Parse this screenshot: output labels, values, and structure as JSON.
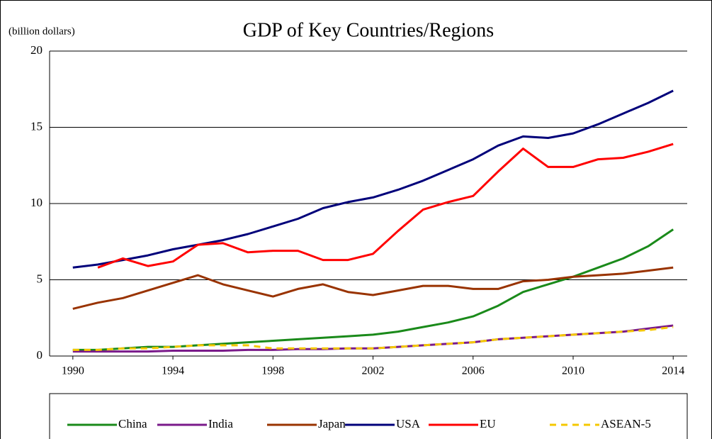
{
  "chart_data": {
    "type": "line",
    "title": "GDP of Key Countries/Regions",
    "ylabel": "(billion dollars)",
    "x": [
      1990,
      1991,
      1992,
      1993,
      1994,
      1995,
      1996,
      1997,
      1998,
      1999,
      2000,
      2001,
      2002,
      2003,
      2004,
      2005,
      2006,
      2007,
      2008,
      2009,
      2010,
      2011,
      2012,
      2013,
      2014
    ],
    "xlim": [
      1989.07,
      2014.56
    ],
    "xticks": [
      1990,
      1994,
      1998,
      2002,
      2006,
      2010,
      2014
    ],
    "ylim": [
      0,
      20
    ],
    "yticks": [
      0,
      5,
      10,
      15,
      20
    ],
    "grid": true,
    "legend": "bottom",
    "series": [
      {
        "name": "China",
        "color": "#1a8a1a",
        "values": [
          0.4,
          0.4,
          0.5,
          0.6,
          0.6,
          0.7,
          0.8,
          0.9,
          1.0,
          1.1,
          1.2,
          1.3,
          1.4,
          1.6,
          1.9,
          2.2,
          2.6,
          3.3,
          4.2,
          4.7,
          5.2,
          5.8,
          6.4,
          7.2,
          8.3
        ]
      },
      {
        "name": "India",
        "color": "#7a1a8a",
        "values": [
          0.3,
          0.3,
          0.3,
          0.3,
          0.35,
          0.35,
          0.35,
          0.4,
          0.4,
          0.45,
          0.45,
          0.5,
          0.5,
          0.6,
          0.7,
          0.8,
          0.9,
          1.1,
          1.2,
          1.3,
          1.4,
          1.5,
          1.6,
          1.8,
          2.0
        ]
      },
      {
        "name": "Japan",
        "color": "#993300",
        "values": [
          3.1,
          3.5,
          3.8,
          4.3,
          4.8,
          5.3,
          4.7,
          4.3,
          3.9,
          4.4,
          4.7,
          4.2,
          4.0,
          4.3,
          4.6,
          4.6,
          4.4,
          4.4,
          4.9,
          5.0,
          5.2,
          5.3,
          5.4,
          5.6,
          5.8
        ]
      },
      {
        "name": "USA",
        "color": "#00007a",
        "values": [
          5.8,
          6.0,
          6.3,
          6.6,
          7.0,
          7.3,
          7.6,
          8.0,
          8.5,
          9.0,
          9.7,
          10.1,
          10.4,
          10.9,
          11.5,
          12.2,
          12.9,
          13.8,
          14.4,
          14.3,
          14.6,
          15.2,
          15.9,
          16.6,
          17.4
        ]
      },
      {
        "name": "EU",
        "color": "#ff0000",
        "values": [
          null,
          5.8,
          6.4,
          5.9,
          6.2,
          7.3,
          7.4,
          6.8,
          6.9,
          6.9,
          6.3,
          6.3,
          6.7,
          8.2,
          9.6,
          10.1,
          10.5,
          12.1,
          13.6,
          12.4,
          12.4,
          12.9,
          13.0,
          13.4,
          13.9
        ]
      },
      {
        "name": "ASEAN-5",
        "color": "#f5c800",
        "dashed": true,
        "values": [
          0.4,
          0.4,
          0.5,
          0.5,
          0.6,
          0.7,
          0.7,
          0.7,
          0.5,
          0.5,
          0.5,
          0.5,
          0.5,
          0.6,
          0.7,
          0.8,
          0.9,
          1.1,
          1.2,
          1.3,
          1.4,
          1.5,
          1.6,
          1.7,
          1.9
        ]
      }
    ]
  }
}
